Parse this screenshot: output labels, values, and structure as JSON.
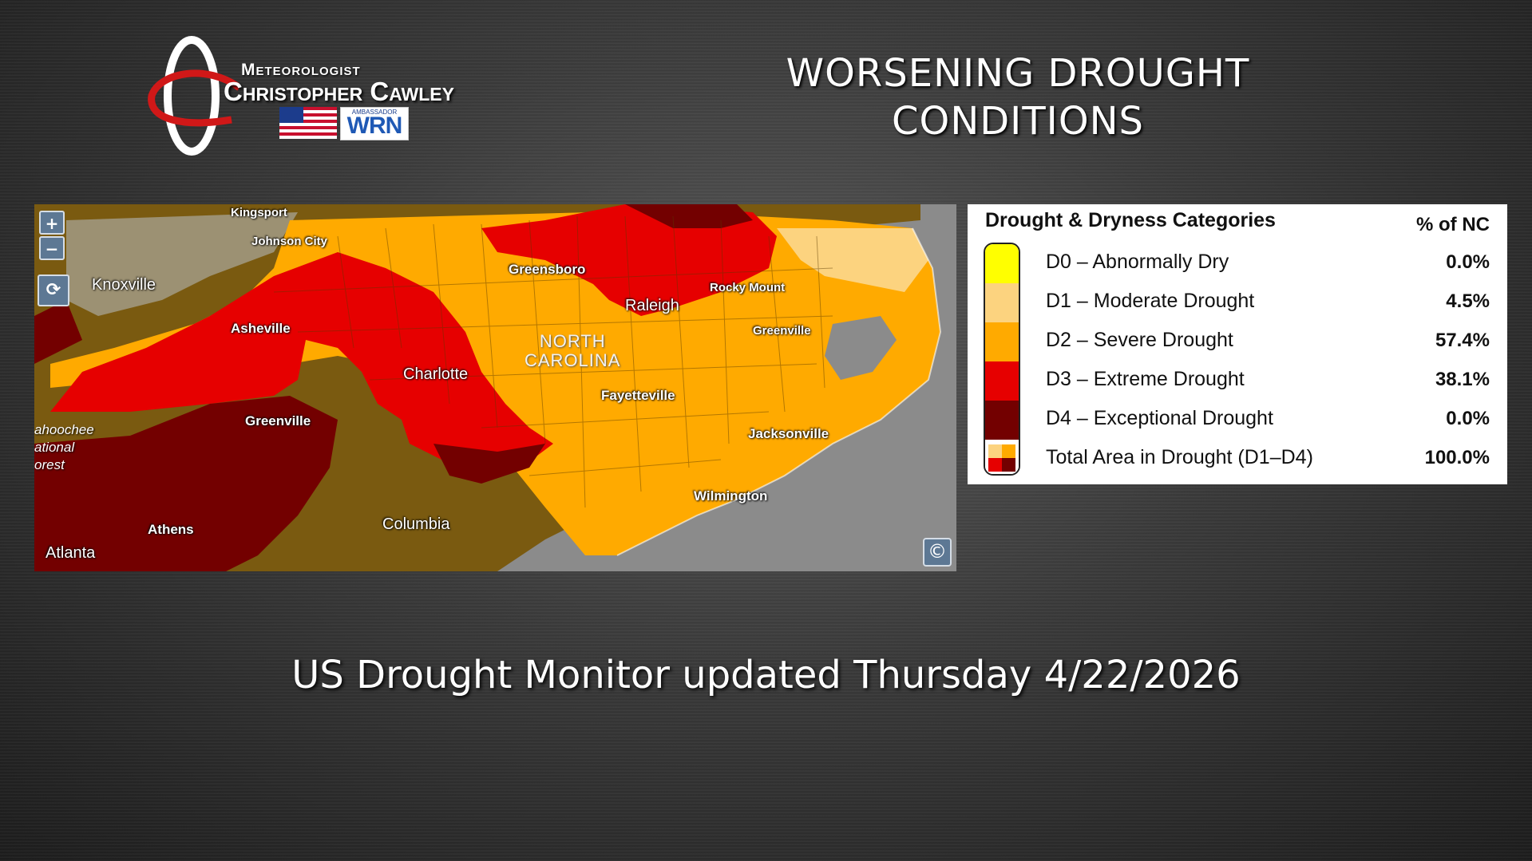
{
  "logo": {
    "line1": "Meteorologist",
    "line2": "Christopher Cawley",
    "badge_small": "AMBASSADOR",
    "badge_big": "WRN"
  },
  "headline": {
    "line1": "WORSENING DROUGHT",
    "line2": "CONDITIONS"
  },
  "map": {
    "zoom_in": "+",
    "zoom_out": "−",
    "copyright": "©",
    "state_label": [
      "NORTH",
      "CAROLINA"
    ],
    "forest_label": [
      "ahoochee",
      "ational",
      "orest"
    ],
    "cities": {
      "kingsport": "Kingsport",
      "johnson_city": "Johnson City",
      "knoxville": "Knoxville",
      "asheville": "Asheville",
      "greensboro": "Greensboro",
      "raleigh": "Raleigh",
      "rocky_mount": "Rocky Mount",
      "greenville_nc": "Greenville",
      "charlotte": "Charlotte",
      "fayetteville": "Fayetteville",
      "greenville_sc": "Greenville",
      "jacksonville": "Jacksonville",
      "wilmington": "Wilmington",
      "athens": "Athens",
      "columbia": "Columbia",
      "atlanta": "Atlanta"
    }
  },
  "legend": {
    "title": "Drought & Dryness Categories",
    "pct_header": "% of NC",
    "colors": [
      "#ffff00",
      "#fcd37f",
      "#ffaa00",
      "#e60000",
      "#730000"
    ],
    "rows": [
      {
        "label": "D0 – Abnormally Dry",
        "pct": "0.0%"
      },
      {
        "label": "D1 – Moderate Drought",
        "pct": "4.5%"
      },
      {
        "label": "D2 – Severe Drought",
        "pct": "57.4%"
      },
      {
        "label": "D3 – Extreme Drought",
        "pct": "38.1%"
      },
      {
        "label": "D4 – Exceptional Drought",
        "pct": "0.0%"
      },
      {
        "label": "Total Area in Drought (D1–D4)",
        "pct": "100.0%"
      }
    ]
  },
  "footer": {
    "text": "US Drought Monitor updated Thursday 4/22/2026"
  }
}
